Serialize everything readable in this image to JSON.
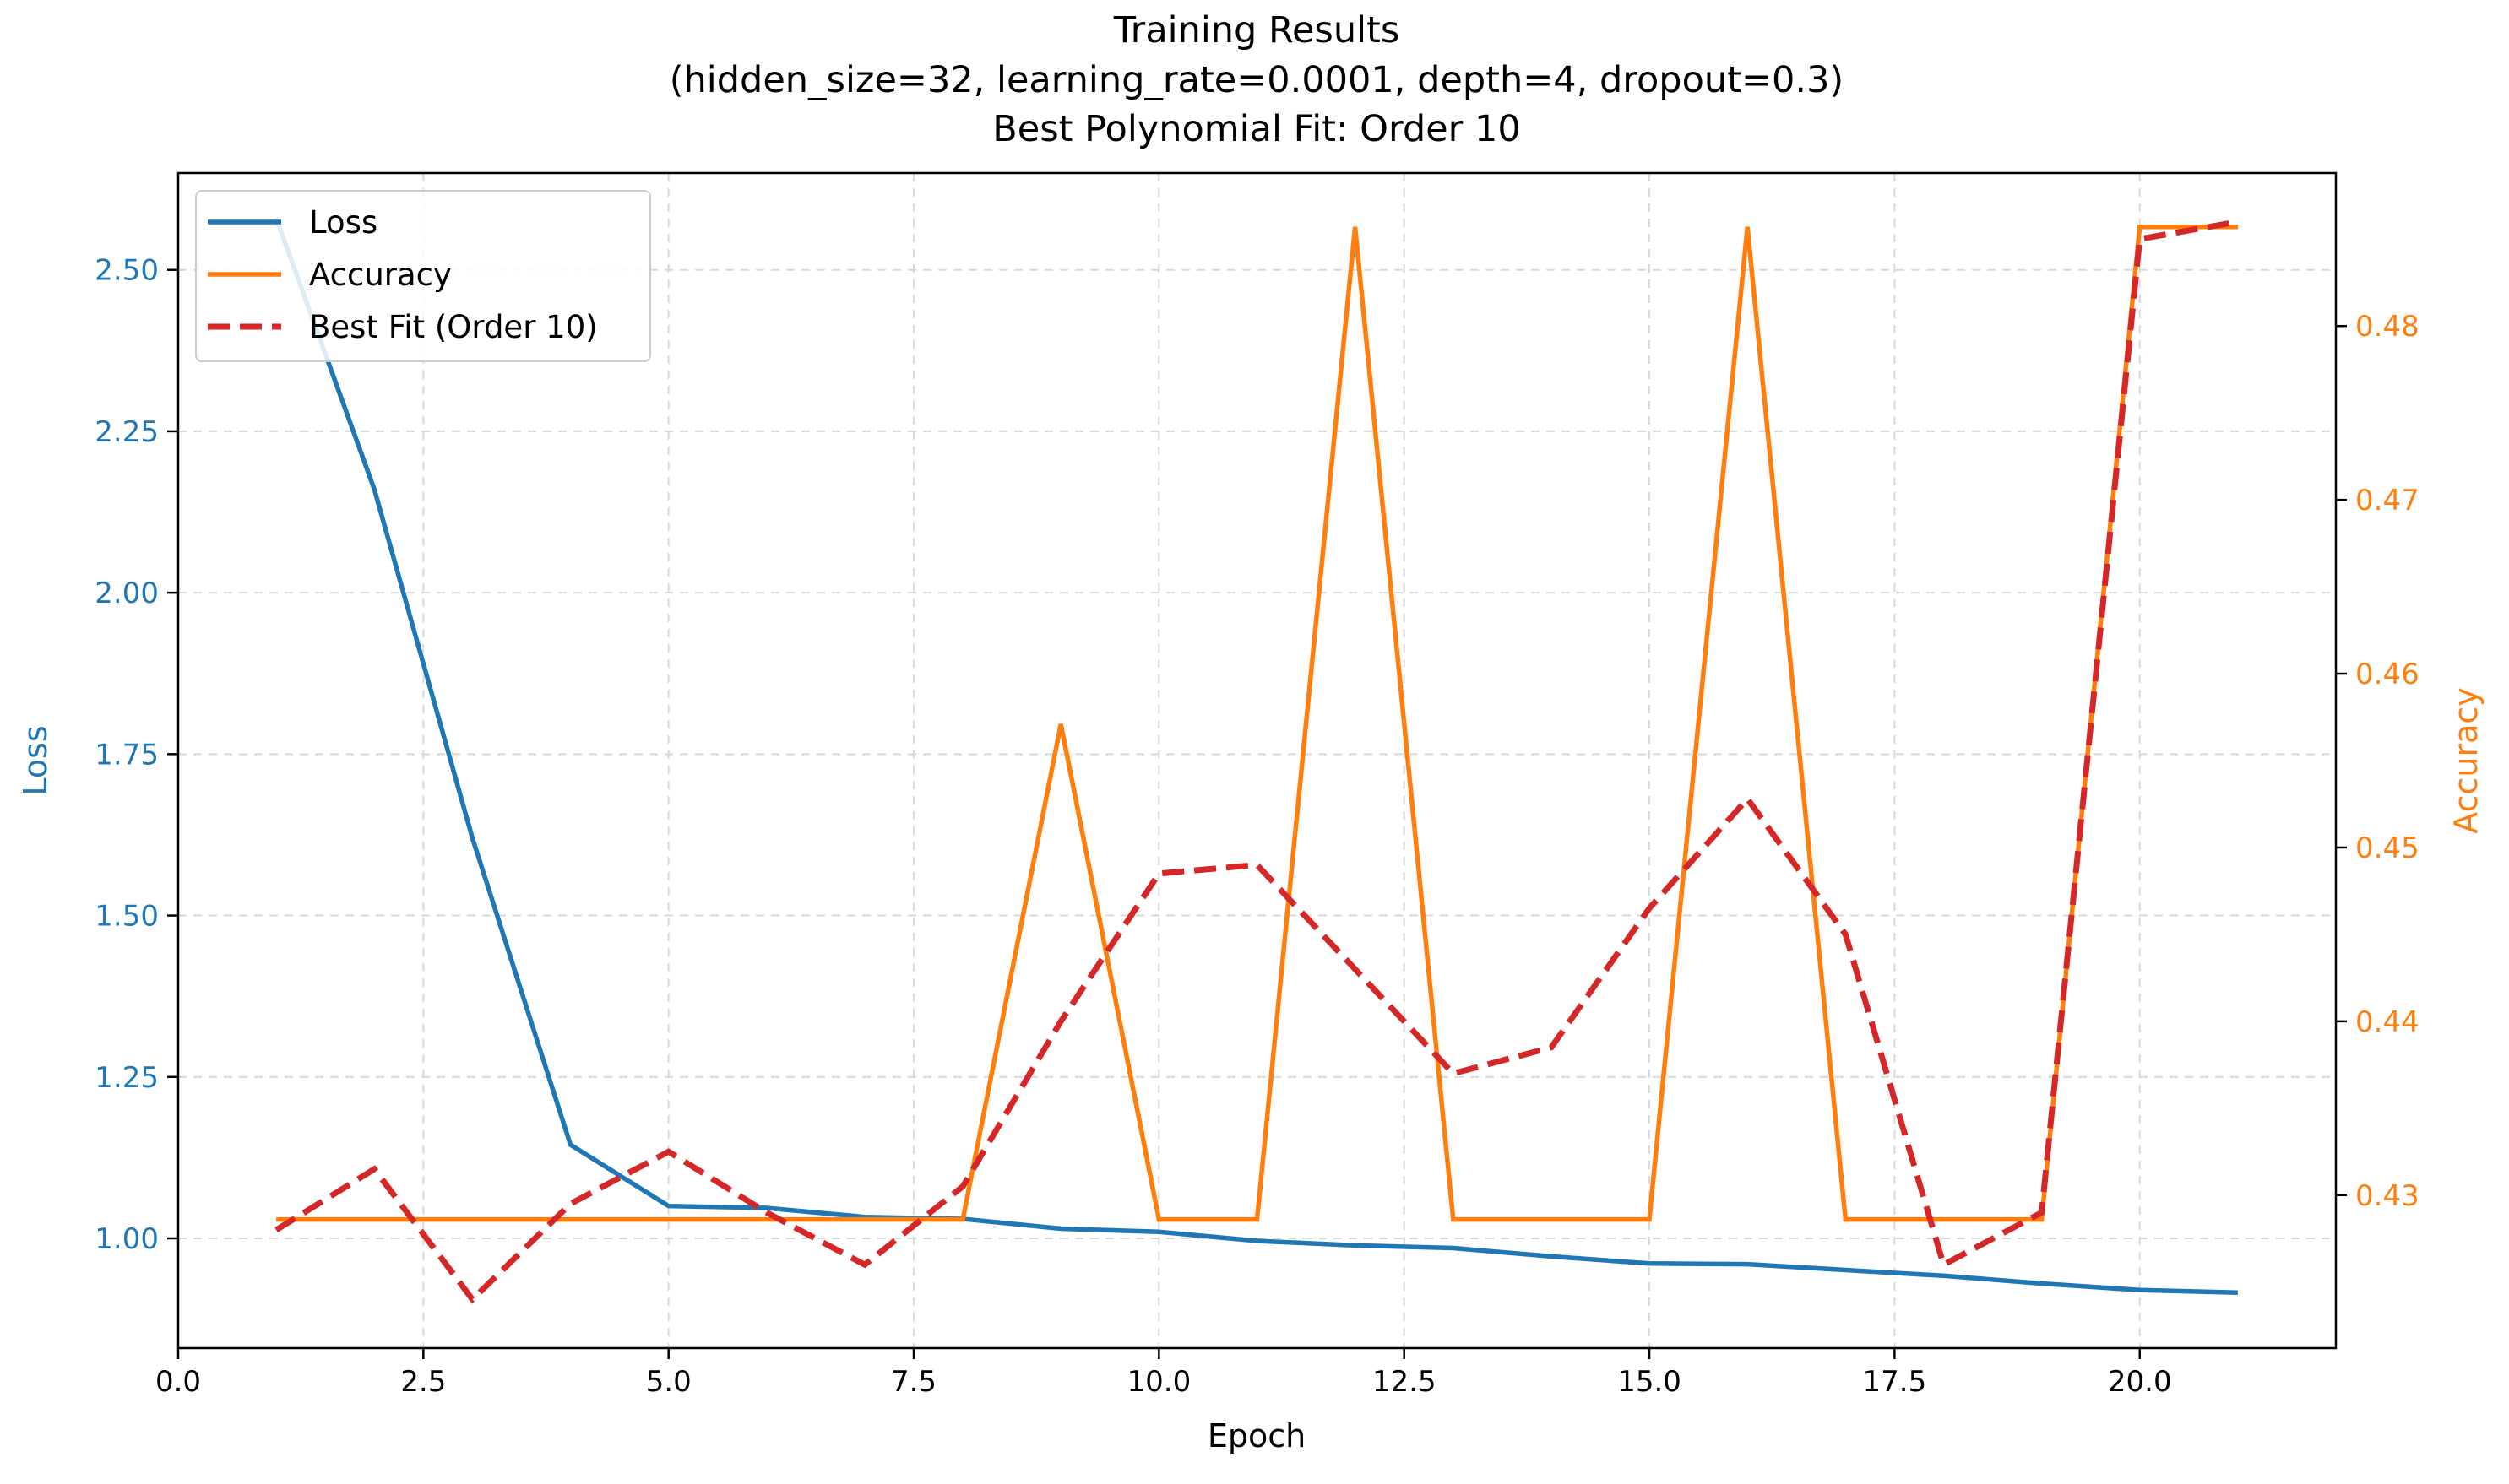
{
  "chart_data": {
    "type": "line",
    "title": [
      "Training Results",
      "(hidden_size=32, learning_rate=0.0001, depth=4, dropout=0.3)",
      "Best Polynomial Fit: Order 10"
    ],
    "xlabel": "Epoch",
    "ylabel_left": "Loss",
    "ylabel_right": "Accuracy",
    "xlim": [
      0,
      22
    ],
    "ylim_left": [
      0.83,
      2.65
    ],
    "ylim_right": [
      0.4212,
      0.4888
    ],
    "x_ticks": [
      "0.0",
      "2.5",
      "5.0",
      "7.5",
      "10.0",
      "12.5",
      "15.0",
      "17.5",
      "20.0"
    ],
    "y_left_ticks": [
      "1.00",
      "1.25",
      "1.50",
      "1.75",
      "2.00",
      "2.25",
      "2.50"
    ],
    "y_right_ticks": [
      "0.43",
      "0.44",
      "0.45",
      "0.46",
      "0.47",
      "0.48"
    ],
    "grid": true,
    "legend_position": "top-left",
    "colors": {
      "loss": "#1f77b4",
      "accuracy": "#ff7f0e",
      "fit": "#d62728"
    },
    "x": [
      1,
      2,
      3,
      4,
      5,
      6,
      7,
      8,
      9,
      10,
      11,
      12,
      13,
      14,
      15,
      16,
      17,
      18,
      19,
      20,
      21
    ],
    "series": [
      {
        "name": "Loss",
        "axis": "left",
        "style": "solid",
        "values": [
          2.58,
          2.16,
          1.62,
          1.145,
          1.05,
          1.047,
          1.033,
          1.03,
          1.015,
          1.01,
          0.996,
          0.989,
          0.985,
          0.972,
          0.961,
          0.96,
          0.951,
          0.942,
          0.93,
          0.92,
          0.916
        ]
      },
      {
        "name": "Accuracy",
        "axis": "right",
        "style": "solid",
        "values": [
          0.4286,
          0.4286,
          0.4286,
          0.4286,
          0.4286,
          0.4286,
          0.4286,
          0.4286,
          0.4571,
          0.4286,
          0.4286,
          0.4857,
          0.4286,
          0.4286,
          0.4286,
          0.4857,
          0.4286,
          0.4286,
          0.4286,
          0.4857,
          0.4857
        ]
      },
      {
        "name": "Best Fit (Order 10)",
        "axis": "right",
        "style": "dashed",
        "values": [
          0.428,
          0.4315,
          0.424,
          0.4295,
          0.4325,
          0.429,
          0.426,
          0.4305,
          0.44,
          0.4485,
          0.449,
          0.443,
          0.437,
          0.4385,
          0.4465,
          0.4528,
          0.445,
          0.426,
          0.429,
          0.485,
          0.486
        ]
      }
    ]
  }
}
